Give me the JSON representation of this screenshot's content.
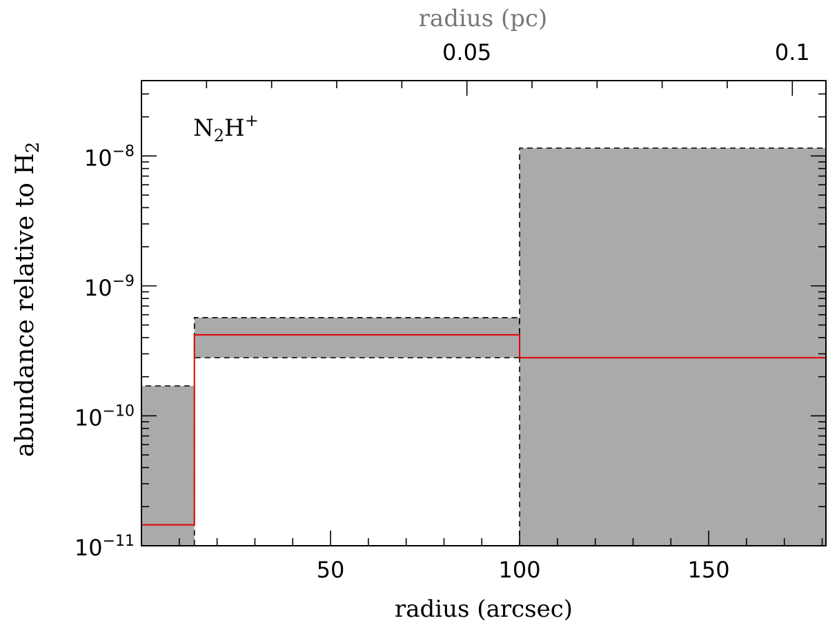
{
  "chart_data": {
    "type": "step-band",
    "title": "",
    "xlabel": "radius (arcsec)",
    "ylabel": "abundance relative to H",
    "ylabel_sub": "2",
    "top_xlabel": "radius (pc)",
    "annotation": {
      "text": "N",
      "sub": "2",
      "mid": "H",
      "sup": "+"
    },
    "xlim": [
      0,
      181
    ],
    "ylim": [
      1e-11,
      3.8e-08
    ],
    "yscale": "log",
    "x_ticks": [
      50,
      100,
      150
    ],
    "x_tick_labels": [
      "50",
      "100",
      "150"
    ],
    "top_ticks_pc": [
      0.05,
      0.1
    ],
    "top_tick_labels": [
      "0.05",
      "0.1"
    ],
    "pc_per_arcsec": 0.000581,
    "y_tick_labels": [
      {
        "value": 1e-11,
        "base": "10",
        "exp": "−11"
      },
      {
        "value": 1e-10,
        "base": "10",
        "exp": "−10"
      },
      {
        "value": 1e-09,
        "base": "10",
        "exp": "−9"
      },
      {
        "value": 1e-08,
        "base": "10",
        "exp": "−8"
      }
    ],
    "bands": [
      {
        "x0": 0,
        "x1": 14,
        "low": 1e-11,
        "high": 1.7e-10
      },
      {
        "x0": 14,
        "x1": 100,
        "low": 2.8e-10,
        "high": 5.7e-10
      },
      {
        "x0": 100,
        "x1": 181,
        "low": 1e-11,
        "high": 1.15e-08
      }
    ],
    "best_fit": [
      {
        "x0": 0,
        "x1": 14,
        "value": 1.45e-11
      },
      {
        "x0": 14,
        "x1": 100,
        "value": 4.2e-10
      },
      {
        "x0": 100,
        "x1": 181,
        "value": 2.8e-10
      }
    ],
    "colors": {
      "band": "#aaaaaa",
      "fit": "#e00000",
      "edge": "#000000"
    }
  }
}
